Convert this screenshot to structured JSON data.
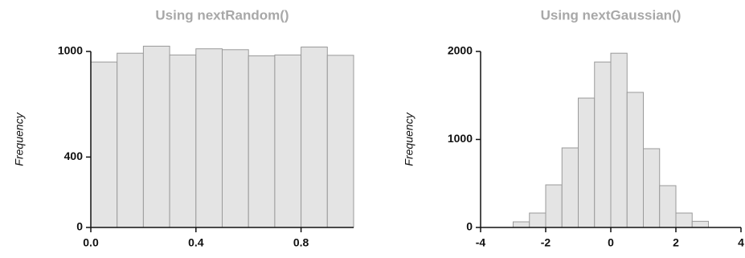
{
  "chart_data": [
    {
      "type": "histogram",
      "title": "Using nextRandom()",
      "y_label": "Frequency",
      "bins": [
        0,
        0.1,
        0.2,
        0.3,
        0.4,
        0.5,
        0.6,
        0.7,
        0.8,
        0.9,
        1.0
      ],
      "values": [
        940,
        990,
        1030,
        980,
        1015,
        1010,
        975,
        980,
        1025,
        978
      ],
      "color": "#e4e4e4",
      "xlim": [
        0,
        1
      ],
      "xticks": [
        {
          "value": 0,
          "label": "0.0"
        },
        0.4,
        0.8
      ],
      "ylim": [
        0,
        1000
      ],
      "yticks": [
        0,
        400,
        1000
      ]
    },
    {
      "type": "histogram",
      "title": "Using nextGaussian()",
      "y_label": "Frequency",
      "bins": [
        -3,
        -2.5,
        -2,
        -1.5,
        -1,
        -0.5,
        0,
        0.5,
        1,
        1.5,
        2,
        2.5,
        3
      ],
      "values": [
        64,
        164,
        484,
        904,
        1470,
        1880,
        1980,
        1535,
        895,
        475,
        164,
        70
      ],
      "color": "#e4e4e4",
      "xlim": [
        -4,
        4
      ],
      "xticks": [
        -4,
        -2,
        0,
        2,
        4
      ],
      "ylim": [
        0,
        2000
      ],
      "yticks": [
        0,
        1000,
        2000
      ]
    }
  ]
}
